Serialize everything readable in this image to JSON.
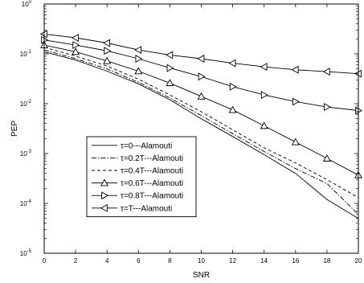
{
  "chart_data": {
    "type": "line",
    "title": "",
    "xlabel": "SNR",
    "ylabel": "PEP",
    "xlim": [
      0,
      20
    ],
    "ylim": [
      1e-05,
      1
    ],
    "yscale": "log",
    "grid": false,
    "legend_position": "lower-left",
    "x_ticks": [
      "0",
      "2",
      "4",
      "6",
      "8",
      "10",
      "12",
      "14",
      "16",
      "18",
      "20"
    ],
    "y_ticks": [
      {
        "value": 1e-05,
        "base": "10",
        "exp": "-5"
      },
      {
        "value": 0.0001,
        "base": "10",
        "exp": "-4"
      },
      {
        "value": 0.001,
        "base": "10",
        "exp": "-3"
      },
      {
        "value": 0.01,
        "base": "10",
        "exp": "-2"
      },
      {
        "value": 0.1,
        "base": "10",
        "exp": "-1"
      },
      {
        "value": 1,
        "base": "10",
        "exp": "0"
      }
    ],
    "x": [
      0,
      2,
      4,
      6,
      8,
      10,
      12,
      14,
      16,
      18,
      20
    ],
    "series": [
      {
        "name": "τ=0---Alamouti",
        "line": "solid",
        "marker": "none",
        "values": [
          0.11,
          0.075,
          0.045,
          0.025,
          0.012,
          0.005,
          0.0022,
          0.00095,
          0.0004,
          0.00012,
          5e-05
        ]
      },
      {
        "name": "τ=0.2T---Alamouti",
        "line": "dashdot",
        "marker": "none",
        "values": [
          0.12,
          0.08,
          0.05,
          0.027,
          0.013,
          0.0058,
          0.0025,
          0.0011,
          0.0005,
          0.00025,
          6e-05
        ]
      },
      {
        "name": "τ=0.4T---Alamouti",
        "line": "dashed",
        "marker": "none",
        "values": [
          0.135,
          0.09,
          0.057,
          0.031,
          0.015,
          0.0069,
          0.003,
          0.0013,
          0.00065,
          0.0003,
          0.00013
        ]
      },
      {
        "name": "τ=0.6T---Alamouti",
        "line": "solid",
        "marker": "triangle-up",
        "values": [
          0.15,
          0.11,
          0.072,
          0.045,
          0.026,
          0.014,
          0.0075,
          0.0036,
          0.0017,
          0.0008,
          0.00037
        ]
      },
      {
        "name": "τ=0.8T---Alamouti",
        "line": "solid",
        "marker": "triangle-right",
        "values": [
          0.19,
          0.15,
          0.115,
          0.08,
          0.052,
          0.035,
          0.022,
          0.015,
          0.011,
          0.0086,
          0.0073
        ]
      },
      {
        "name": "τ=T---Alamouti",
        "line": "solid",
        "marker": "triangle-left",
        "values": [
          0.25,
          0.21,
          0.165,
          0.12,
          0.095,
          0.08,
          0.065,
          0.055,
          0.048,
          0.044,
          0.04
        ]
      }
    ]
  }
}
